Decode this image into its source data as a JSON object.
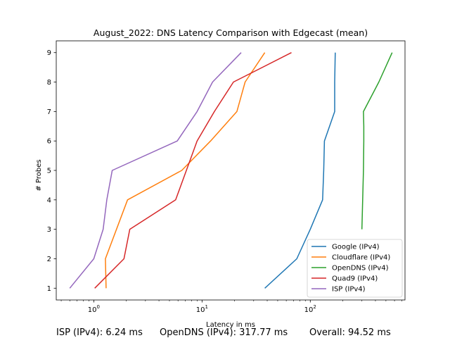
{
  "chart_data": {
    "type": "line",
    "title": "August_2022: DNS Latency Comparison with Edgecast (mean)",
    "xlabel": "Latency in ms",
    "ylabel": "# Probes",
    "xscale": "log",
    "xlim": [
      0.45,
      750
    ],
    "ylim": [
      0.6,
      9.4
    ],
    "xticks": [
      1,
      10,
      100
    ],
    "xtick_labels": [
      "10^0",
      "10^1",
      "10^2"
    ],
    "yticks": [
      1,
      2,
      3,
      4,
      5,
      6,
      7,
      8,
      9
    ],
    "legend_position": "bottom-right",
    "grid": false,
    "series": [
      {
        "name": "Google (IPv4)",
        "color": "#1f77b4",
        "x": [
          38,
          75,
          100,
          130,
          133,
          135,
          168,
          168,
          170
        ],
        "y": [
          1,
          2,
          3,
          4,
          5,
          6,
          7,
          8,
          9
        ]
      },
      {
        "name": "Cloudflare (IPv4)",
        "color": "#ff7f0e",
        "x": [
          1.3,
          1.28,
          2.05,
          6.5,
          12,
          21,
          25,
          38
        ],
        "y": [
          1,
          2,
          4,
          5,
          6,
          7,
          8,
          9
        ]
      },
      {
        "name": "OpenDNS (IPv4)",
        "color": "#2ca02c",
        "x": [
          300,
          305,
          310,
          312,
          312,
          310,
          430,
          570
        ],
        "y": [
          3,
          4,
          5,
          6,
          6.5,
          7,
          8,
          9
        ]
      },
      {
        "name": "Quad9 (IPv4)",
        "color": "#d62728",
        "x": [
          1.02,
          1.9,
          2.15,
          5.7,
          9,
          13,
          19.5,
          67
        ],
        "y": [
          1,
          2,
          3,
          4,
          6,
          7,
          8,
          9
        ]
      },
      {
        "name": "ISP (IPv4)",
        "color": "#9467bd",
        "x": [
          0.6,
          1.0,
          1.22,
          1.32,
          1.48,
          5.9,
          9,
          12.5,
          23
        ],
        "y": [
          1,
          2,
          3,
          4,
          5,
          6,
          7,
          8,
          9
        ]
      }
    ]
  },
  "footer": {
    "isp": "ISP (IPv4): 6.24 ms",
    "opendns": "OpenDNS (IPv4): 317.77 ms",
    "overall": "Overall: 94.52 ms"
  }
}
